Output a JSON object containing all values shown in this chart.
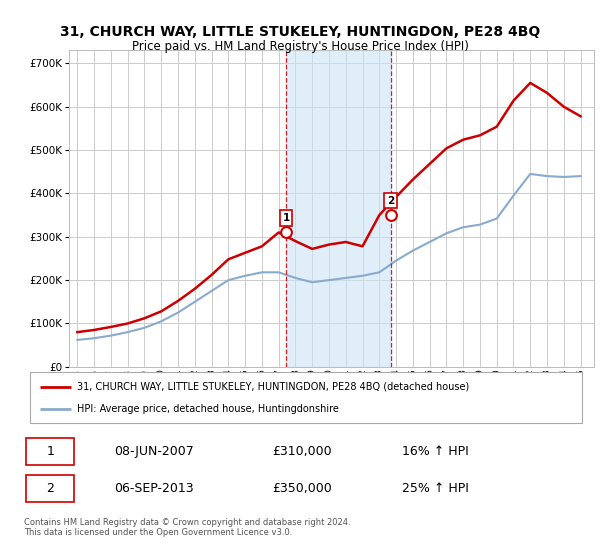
{
  "title": "31, CHURCH WAY, LITTLE STUKELEY, HUNTINGDON, PE28 4BQ",
  "subtitle": "Price paid vs. HM Land Registry's House Price Index (HPI)",
  "ylim": [
    0,
    730000
  ],
  "xlim_start": 1994.5,
  "xlim_end": 2025.8,
  "background_color": "#ffffff",
  "plot_bg_color": "#ffffff",
  "grid_color": "#cccccc",
  "red_line_color": "#cc0000",
  "blue_line_color": "#88aacc",
  "sale1_x": 2007.44,
  "sale1_y": 310000,
  "sale2_x": 2013.67,
  "sale2_y": 350000,
  "legend_red": "31, CHURCH WAY, LITTLE STUKELEY, HUNTINGDON, PE28 4BQ (detached house)",
  "legend_blue": "HPI: Average price, detached house, Huntingdonshire",
  "table_row1": [
    "1",
    "08-JUN-2007",
    "£310,000",
    "16% ↑ HPI"
  ],
  "table_row2": [
    "2",
    "06-SEP-2013",
    "£350,000",
    "25% ↑ HPI"
  ],
  "footnote": "Contains HM Land Registry data © Crown copyright and database right 2024.\nThis data is licensed under the Open Government Licence v3.0.",
  "hpi_years": [
    1995,
    1996,
    1997,
    1998,
    1999,
    2000,
    2001,
    2002,
    2003,
    2004,
    2005,
    2006,
    2007,
    2008,
    2009,
    2010,
    2011,
    2012,
    2013,
    2014,
    2015,
    2016,
    2017,
    2018,
    2019,
    2020,
    2021,
    2022,
    2023,
    2024,
    2025
  ],
  "hpi_values": [
    62000,
    66000,
    72000,
    80000,
    90000,
    105000,
    125000,
    150000,
    175000,
    200000,
    210000,
    218000,
    218000,
    205000,
    195000,
    200000,
    205000,
    210000,
    218000,
    245000,
    268000,
    288000,
    308000,
    322000,
    328000,
    342000,
    395000,
    445000,
    440000,
    438000,
    440000
  ],
  "red_years": [
    1995,
    1996,
    1997,
    1998,
    1999,
    2000,
    2001,
    2002,
    2003,
    2004,
    2005,
    2006,
    2007,
    2008,
    2009,
    2010,
    2011,
    2012,
    2013,
    2014,
    2015,
    2016,
    2017,
    2018,
    2019,
    2020,
    2021,
    2022,
    2023,
    2024,
    2025
  ],
  "red_values": [
    80000,
    85000,
    92000,
    100000,
    112000,
    128000,
    152000,
    180000,
    212000,
    248000,
    263000,
    278000,
    310000,
    290000,
    272000,
    282000,
    288000,
    278000,
    350000,
    392000,
    432000,
    468000,
    504000,
    524000,
    534000,
    554000,
    614000,
    655000,
    632000,
    600000,
    578000
  ]
}
